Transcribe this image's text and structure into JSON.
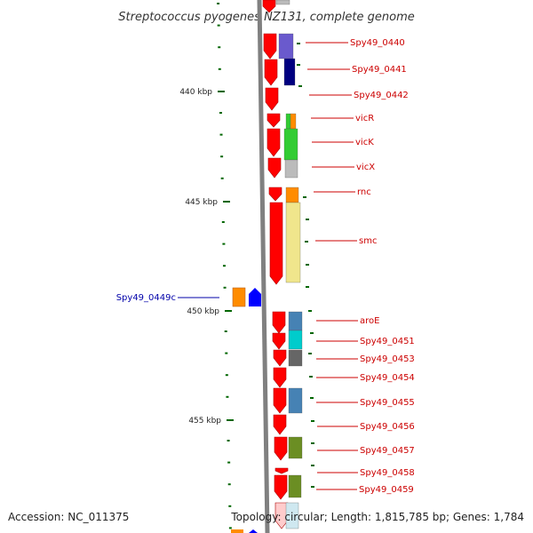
{
  "title": "Streptococcus pyogenes NZ131, complete genome",
  "footer": {
    "accession": "Accession: NC_011375",
    "topology": "Topology: circular; Length: 1,815,785 bp; Genes: 1,784"
  },
  "scale_labels": [
    "440 kbp",
    "445 kbp",
    "450 kbp",
    "455 kbp"
  ],
  "genes": [
    {
      "name": "Spy49_0440",
      "color": "#cc0000"
    },
    {
      "name": "Spy49_0441",
      "color": "#cc0000"
    },
    {
      "name": "Spy49_0442",
      "color": "#cc0000"
    },
    {
      "name": "vicR",
      "color": "#cc0000"
    },
    {
      "name": "vicK",
      "color": "#cc0000"
    },
    {
      "name": "vicX",
      "color": "#cc0000"
    },
    {
      "name": "rnc",
      "color": "#cc0000"
    },
    {
      "name": "smc",
      "color": "#cc0000"
    },
    {
      "name": "Spy49_0449c",
      "color": "#0000aa"
    },
    {
      "name": "aroE",
      "color": "#cc0000"
    },
    {
      "name": "Spy49_0451",
      "color": "#cc0000"
    },
    {
      "name": "Spy49_0453",
      "color": "#cc0000"
    },
    {
      "name": "Spy49_0454",
      "color": "#cc0000"
    },
    {
      "name": "Spy49_0455",
      "color": "#cc0000"
    },
    {
      "name": "Spy49_0456",
      "color": "#cc0000"
    },
    {
      "name": "Spy49_0457",
      "color": "#cc0000"
    },
    {
      "name": "Spy49_0458",
      "color": "#cc0000"
    },
    {
      "name": "Spy49_0459",
      "color": "#cc0000"
    }
  ],
  "colors": {
    "forward_strand": "#ff0000",
    "reverse_strand": "#0000ff",
    "backbone": "#808080",
    "tick": "#006600",
    "cog_purple": "#6a5acd",
    "cog_navy": "#000080",
    "cog_orange": "#ff8c00",
    "cog_green": "#33cc33",
    "cog_grey": "#bbbbbb",
    "cog_khaki": "#f0e68c",
    "cog_steel": "#4682b4",
    "cog_cyan": "#00cccc",
    "cog_dimgrey": "#666666",
    "cog_olive": "#6b8e23"
  }
}
